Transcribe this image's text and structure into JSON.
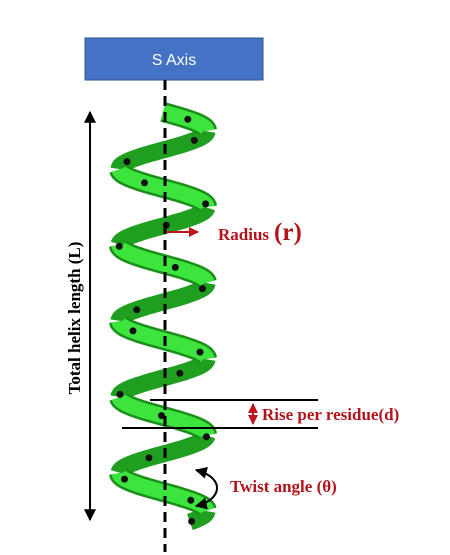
{
  "axis_label": "S Axis",
  "labels": {
    "total_length": "Total helix length (L)",
    "radius": "Radius",
    "radius_symbol": "(r)",
    "rise": "Rise per residue(d)",
    "twist": "Twist angle (θ)"
  }
}
